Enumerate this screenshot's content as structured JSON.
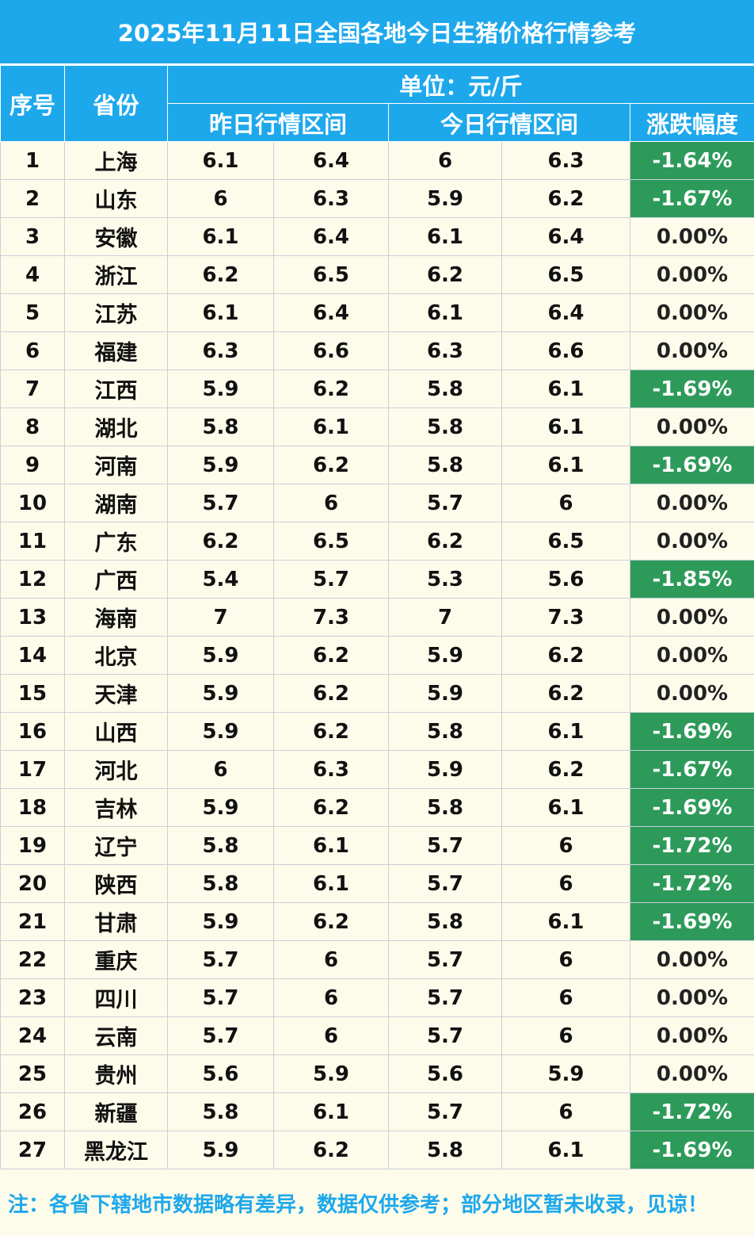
{
  "title": "2025年11月11日全国各地今日生猪价格行情参考",
  "headers": {
    "index": "序号",
    "province": "省份",
    "unit": "单位：元/斤",
    "yesterday": "昨日行情区间",
    "today": "今日行情区间",
    "change": "涨跌幅度"
  },
  "rows": [
    {
      "no": "1",
      "province": "上海",
      "y_low": "6.1",
      "y_high": "6.4",
      "t_low": "6",
      "t_high": "6.3",
      "change": "-1.64%"
    },
    {
      "no": "2",
      "province": "山东",
      "y_low": "6",
      "y_high": "6.3",
      "t_low": "5.9",
      "t_high": "6.2",
      "change": "-1.67%"
    },
    {
      "no": "3",
      "province": "安徽",
      "y_low": "6.1",
      "y_high": "6.4",
      "t_low": "6.1",
      "t_high": "6.4",
      "change": "0.00%"
    },
    {
      "no": "4",
      "province": "浙江",
      "y_low": "6.2",
      "y_high": "6.5",
      "t_low": "6.2",
      "t_high": "6.5",
      "change": "0.00%"
    },
    {
      "no": "5",
      "province": "江苏",
      "y_low": "6.1",
      "y_high": "6.4",
      "t_low": "6.1",
      "t_high": "6.4",
      "change": "0.00%"
    },
    {
      "no": "6",
      "province": "福建",
      "y_low": "6.3",
      "y_high": "6.6",
      "t_low": "6.3",
      "t_high": "6.6",
      "change": "0.00%"
    },
    {
      "no": "7",
      "province": "江西",
      "y_low": "5.9",
      "y_high": "6.2",
      "t_low": "5.8",
      "t_high": "6.1",
      "change": "-1.69%"
    },
    {
      "no": "8",
      "province": "湖北",
      "y_low": "5.8",
      "y_high": "6.1",
      "t_low": "5.8",
      "t_high": "6.1",
      "change": "0.00%"
    },
    {
      "no": "9",
      "province": "河南",
      "y_low": "5.9",
      "y_high": "6.2",
      "t_low": "5.8",
      "t_high": "6.1",
      "change": "-1.69%"
    },
    {
      "no": "10",
      "province": "湖南",
      "y_low": "5.7",
      "y_high": "6",
      "t_low": "5.7",
      "t_high": "6",
      "change": "0.00%"
    },
    {
      "no": "11",
      "province": "广东",
      "y_low": "6.2",
      "y_high": "6.5",
      "t_low": "6.2",
      "t_high": "6.5",
      "change": "0.00%"
    },
    {
      "no": "12",
      "province": "广西",
      "y_low": "5.4",
      "y_high": "5.7",
      "t_low": "5.3",
      "t_high": "5.6",
      "change": "-1.85%"
    },
    {
      "no": "13",
      "province": "海南",
      "y_low": "7",
      "y_high": "7.3",
      "t_low": "7",
      "t_high": "7.3",
      "change": "0.00%"
    },
    {
      "no": "14",
      "province": "北京",
      "y_low": "5.9",
      "y_high": "6.2",
      "t_low": "5.9",
      "t_high": "6.2",
      "change": "0.00%"
    },
    {
      "no": "15",
      "province": "天津",
      "y_low": "5.9",
      "y_high": "6.2",
      "t_low": "5.9",
      "t_high": "6.2",
      "change": "0.00%"
    },
    {
      "no": "16",
      "province": "山西",
      "y_low": "5.9",
      "y_high": "6.2",
      "t_low": "5.8",
      "t_high": "6.1",
      "change": "-1.69%"
    },
    {
      "no": "17",
      "province": "河北",
      "y_low": "6",
      "y_high": "6.3",
      "t_low": "5.9",
      "t_high": "6.2",
      "change": "-1.67%"
    },
    {
      "no": "18",
      "province": "吉林",
      "y_low": "5.9",
      "y_high": "6.2",
      "t_low": "5.8",
      "t_high": "6.1",
      "change": "-1.69%"
    },
    {
      "no": "19",
      "province": "辽宁",
      "y_low": "5.8",
      "y_high": "6.1",
      "t_low": "5.7",
      "t_high": "6",
      "change": "-1.72%"
    },
    {
      "no": "20",
      "province": "陕西",
      "y_low": "5.8",
      "y_high": "6.1",
      "t_low": "5.7",
      "t_high": "6",
      "change": "-1.72%"
    },
    {
      "no": "21",
      "province": "甘肃",
      "y_low": "5.9",
      "y_high": "6.2",
      "t_low": "5.8",
      "t_high": "6.1",
      "change": "-1.69%"
    },
    {
      "no": "22",
      "province": "重庆",
      "y_low": "5.7",
      "y_high": "6",
      "t_low": "5.7",
      "t_high": "6",
      "change": "0.00%"
    },
    {
      "no": "23",
      "province": "四川",
      "y_low": "5.7",
      "y_high": "6",
      "t_low": "5.7",
      "t_high": "6",
      "change": "0.00%"
    },
    {
      "no": "24",
      "province": "云南",
      "y_low": "5.7",
      "y_high": "6",
      "t_low": "5.7",
      "t_high": "6",
      "change": "0.00%"
    },
    {
      "no": "25",
      "province": "贵州",
      "y_low": "5.6",
      "y_high": "5.9",
      "t_low": "5.6",
      "t_high": "5.9",
      "change": "0.00%"
    },
    {
      "no": "26",
      "province": "新疆",
      "y_low": "5.8",
      "y_high": "6.1",
      "t_low": "5.7",
      "t_high": "6",
      "change": "-1.72%"
    },
    {
      "no": "27",
      "province": "黑龙江",
      "y_low": "5.9",
      "y_high": "6.2",
      "t_low": "5.8",
      "t_high": "6.1",
      "change": "-1.69%"
    }
  ],
  "note": "注：各省下辖地市数据略有差异，数据仅供参考；部分地区暂未收录，见谅！",
  "colors": {
    "header_blue": "#1ea8ec",
    "decline_green": "#2e9a5a",
    "background": "#fdfbea"
  }
}
